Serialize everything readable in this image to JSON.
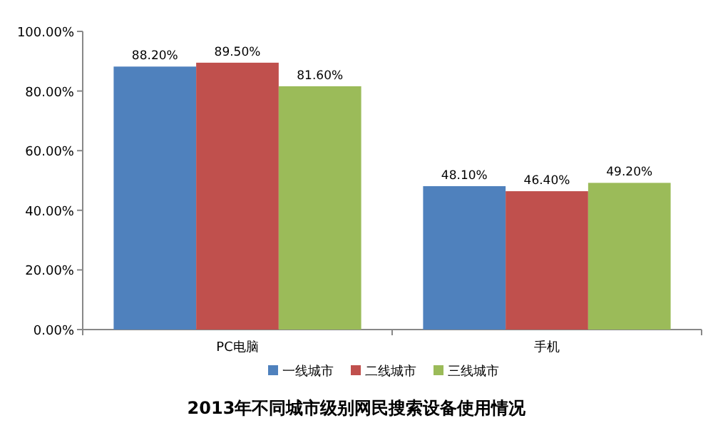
{
  "chart_data": {
    "type": "bar",
    "title": "2013年不同城市级别网民搜索设备使用情况",
    "categories": [
      "PC电脑",
      "手机"
    ],
    "series": [
      {
        "name": "一线城市",
        "color": "#4f81bd",
        "values": [
          88.2,
          48.1
        ],
        "value_labels": [
          "88.20%",
          "48.10%"
        ]
      },
      {
        "name": "二线城市",
        "color": "#c0504d",
        "values": [
          89.5,
          46.4
        ],
        "value_labels": [
          "89.50%",
          "46.40%"
        ]
      },
      {
        "name": "三线城市",
        "color": "#9bbb59",
        "values": [
          81.6,
          49.2
        ],
        "value_labels": [
          "81.60%",
          "49.20%"
        ]
      }
    ],
    "ylim": [
      0,
      100
    ],
    "yticks": [
      {
        "value": 0,
        "label": "0.00%"
      },
      {
        "value": 20,
        "label": "20.00%"
      },
      {
        "value": 40,
        "label": "40.00%"
      },
      {
        "value": 60,
        "label": "60.00%"
      },
      {
        "value": 80,
        "label": "80.00%"
      },
      {
        "value": 100,
        "label": "100.00%"
      }
    ],
    "legend": "bottom"
  }
}
